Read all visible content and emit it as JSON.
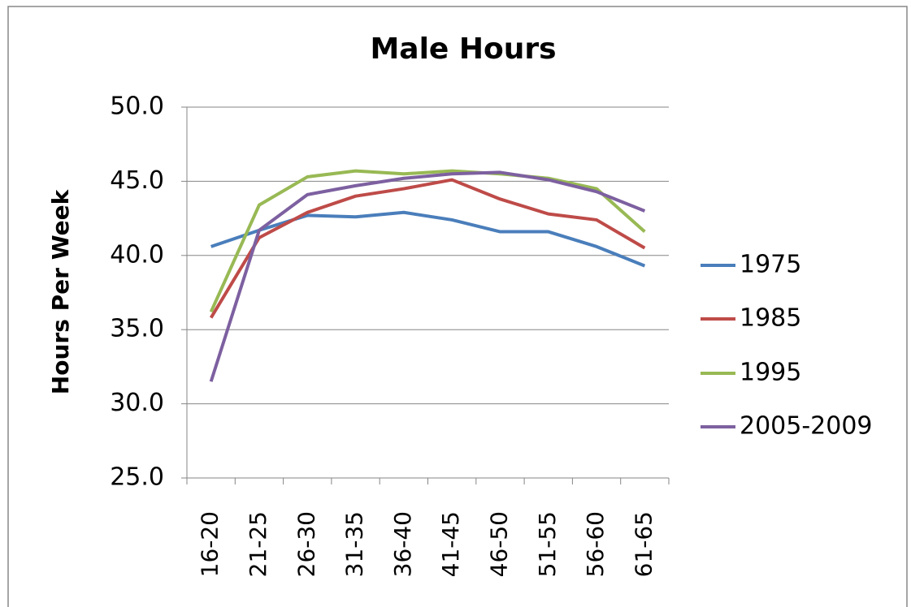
{
  "chart_data": {
    "type": "line",
    "title": "Male Hours",
    "y_label": "Hours Per Week",
    "categories": [
      "16-20",
      "21-25",
      "26-30",
      "31-35",
      "36-40",
      "41-45",
      "46-50",
      "51-55",
      "56-60",
      "61-65"
    ],
    "series": [
      {
        "name": "1975",
        "color": "#4a7ebb",
        "values": [
          40.6,
          41.7,
          42.7,
          42.6,
          42.9,
          42.4,
          41.6,
          41.6,
          40.6,
          39.3
        ]
      },
      {
        "name": "1985",
        "color": "#be4b48",
        "values": [
          35.8,
          41.2,
          42.9,
          44.0,
          44.5,
          45.1,
          43.8,
          42.8,
          42.4,
          40.5
        ]
      },
      {
        "name": "1995",
        "color": "#98b954",
        "values": [
          36.2,
          43.4,
          45.3,
          45.7,
          45.5,
          45.7,
          45.5,
          45.2,
          44.5,
          41.6
        ]
      },
      {
        "name": "2005-2009",
        "color": "#7d60a0",
        "values": [
          31.5,
          41.7,
          44.1,
          44.7,
          45.2,
          45.5,
          45.6,
          45.1,
          44.3,
          43.0
        ]
      }
    ],
    "ylim": [
      25,
      50
    ],
    "yticks": [
      {
        "value": 25,
        "label": "25.0"
      },
      {
        "value": 30,
        "label": "30.0"
      },
      {
        "value": 35,
        "label": "35.0"
      },
      {
        "value": 40,
        "label": "40.0"
      },
      {
        "value": 45,
        "label": "45.0"
      },
      {
        "value": 50,
        "label": "50.0"
      }
    ],
    "grid": true,
    "legend": "right"
  }
}
